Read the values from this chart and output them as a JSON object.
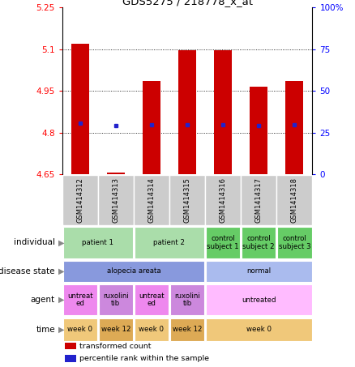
{
  "title": "GDS5275 / 218778_x_at",
  "samples": [
    "GSM1414312",
    "GSM1414313",
    "GSM1414314",
    "GSM1414315",
    "GSM1414316",
    "GSM1414317",
    "GSM1414318"
  ],
  "bar_values": [
    5.12,
    4.657,
    4.985,
    5.095,
    5.095,
    4.965,
    4.985
  ],
  "blue_values": [
    4.835,
    4.825,
    4.828,
    4.828,
    4.828,
    4.825,
    4.828
  ],
  "bar_bottom": 4.65,
  "ylim_left": [
    4.65,
    5.25
  ],
  "ylim_right": [
    0,
    100
  ],
  "yticks_left": [
    4.65,
    4.8,
    4.95,
    5.1,
    5.25
  ],
  "yticks_right": [
    0,
    25,
    50,
    75,
    100
  ],
  "ytick_labels_left": [
    "4.65",
    "4.8",
    "4.95",
    "5.1",
    "5.25"
  ],
  "ytick_labels_right": [
    "0",
    "25",
    "50",
    "75",
    "100%"
  ],
  "bar_color": "#cc0000",
  "blue_color": "#2222cc",
  "grid_color": "black",
  "annotation_rows": [
    {
      "label": "individual",
      "cells": [
        {
          "text": "patient 1",
          "span": 2,
          "color": "#aaddaa"
        },
        {
          "text": "patient 2",
          "span": 2,
          "color": "#aaddaa"
        },
        {
          "text": "control\nsubject 1",
          "span": 1,
          "color": "#66cc66"
        },
        {
          "text": "control\nsubject 2",
          "span": 1,
          "color": "#66cc66"
        },
        {
          "text": "control\nsubject 3",
          "span": 1,
          "color": "#66cc66"
        }
      ]
    },
    {
      "label": "disease state",
      "cells": [
        {
          "text": "alopecia areata",
          "span": 4,
          "color": "#8899dd"
        },
        {
          "text": "normal",
          "span": 3,
          "color": "#aabbee"
        }
      ]
    },
    {
      "label": "agent",
      "cells": [
        {
          "text": "untreat\ned",
          "span": 1,
          "color": "#ee88ee"
        },
        {
          "text": "ruxolini\ntib",
          "span": 1,
          "color": "#cc88dd"
        },
        {
          "text": "untreat\ned",
          "span": 1,
          "color": "#ee88ee"
        },
        {
          "text": "ruxolini\ntib",
          "span": 1,
          "color": "#cc88dd"
        },
        {
          "text": "untreated",
          "span": 3,
          "color": "#ffbbff"
        }
      ]
    },
    {
      "label": "time",
      "cells": [
        {
          "text": "week 0",
          "span": 1,
          "color": "#f0c87a"
        },
        {
          "text": "week 12",
          "span": 1,
          "color": "#ddaa55"
        },
        {
          "text": "week 0",
          "span": 1,
          "color": "#f0c87a"
        },
        {
          "text": "week 12",
          "span": 1,
          "color": "#ddaa55"
        },
        {
          "text": "week 0",
          "span": 3,
          "color": "#f0c87a"
        }
      ]
    }
  ],
  "legend_items": [
    {
      "color": "#cc0000",
      "label": "transformed count"
    },
    {
      "color": "#2222cc",
      "label": "percentile rank within the sample"
    }
  ],
  "sample_bg_color": "#cccccc",
  "sample_border_color": "#ffffff"
}
